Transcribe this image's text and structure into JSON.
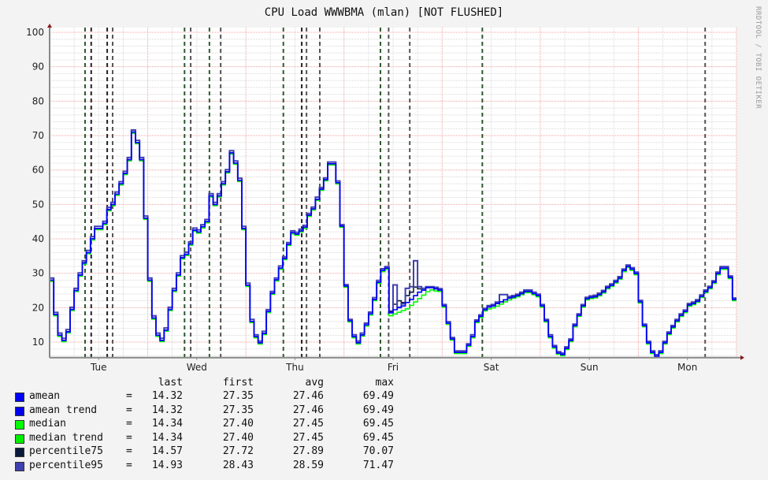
{
  "chart_data": {
    "type": "line",
    "title": "CPU Load WWWBMA (mlan) [NOT FLUSHED]",
    "watermark": "RRDTOOL / TOBI OETIKER",
    "x_ticks": [
      "Tue",
      "Wed",
      "Thu",
      "Fri",
      "Sat",
      "Sun",
      "Mon"
    ],
    "x_resolution": "hourly",
    "ylim": [
      5.5,
      100
    ],
    "y_ticks": [
      10,
      20,
      30,
      40,
      50,
      60,
      70,
      80,
      90,
      100
    ],
    "grid": true,
    "legend_placement": "bottom",
    "series": [
      {
        "name": "median",
        "color": "#00ff00",
        "values": [
          28,
          18,
          12,
          10.5,
          13,
          19.5,
          25,
          29.5,
          33,
          36,
          40,
          43,
          43,
          44.5,
          48.5,
          50,
          53,
          56,
          59,
          63,
          71,
          68,
          63,
          46,
          28,
          17,
          12,
          10.5,
          13.5,
          19.5,
          25,
          29.5,
          34.5,
          35.5,
          38.5,
          42.5,
          42,
          43.5,
          45,
          52.5,
          50,
          52.5,
          56,
          59.5,
          65,
          62,
          57,
          43,
          26.5,
          16,
          11.6,
          9.8,
          12.5,
          18.9,
          24.2,
          28.1,
          31.5,
          34.3,
          38.4,
          41.8,
          41.4,
          42.3,
          43.4,
          46.9,
          48.7,
          51.5,
          54.4,
          57.2,
          61.8,
          61.8,
          56.3,
          43.7,
          26.3,
          16.2,
          11.6,
          9.8,
          12.1,
          15,
          18.2,
          22.4,
          27.4,
          30.8,
          31.5,
          18,
          18.5,
          19,
          19.5,
          20,
          21,
          22,
          23,
          24,
          25,
          25.5,
          25.2,
          25,
          20.5,
          15.5,
          10.9,
          7,
          7,
          7,
          9.1,
          11.6,
          16,
          17.5,
          19.4,
          20,
          20.3,
          20.8,
          21.4,
          22,
          22.6,
          23.1,
          23.5,
          24.1,
          24.7,
          24.7,
          24.1,
          23.5,
          20.5,
          16.2,
          11.6,
          8.6,
          6.8,
          6.4,
          8.2,
          10.5,
          14.8,
          17.8,
          20.5,
          22.6,
          23,
          23.2,
          23.8,
          24.6,
          25.8,
          26.5,
          27.5,
          28.6,
          30.8,
          32,
          31.2,
          29.9,
          21.7,
          14.8,
          9.8,
          7,
          5.9,
          7,
          9.8,
          12.5,
          14.4,
          16.2,
          17.8,
          18.9,
          20.8,
          21.2,
          21.9,
          23.3,
          24.7,
          25.8,
          27.4,
          29.9,
          31.5,
          31.5,
          28.8,
          22.4
        ]
      },
      {
        "name": "percentile75",
        "color": "#0a1a3a",
        "values": [
          28,
          18,
          12,
          10.5,
          13,
          19.5,
          25,
          29.5,
          33,
          36,
          40,
          43,
          43,
          44.5,
          48.5,
          50,
          53,
          56,
          59,
          63,
          71,
          68,
          63,
          46,
          28,
          17,
          12,
          10.5,
          13.5,
          19.5,
          25,
          29.5,
          34.5,
          35.5,
          38.5,
          42.5,
          42,
          43.5,
          45,
          52.5,
          50,
          52.5,
          56,
          59.5,
          65,
          62,
          57,
          43,
          26.5,
          16,
          11.6,
          9.8,
          12.5,
          18.9,
          24.2,
          28.1,
          31.5,
          34.3,
          38.4,
          41.8,
          41.4,
          42.3,
          43.4,
          46.9,
          48.7,
          51.5,
          54.4,
          57.2,
          61.8,
          61.8,
          56.3,
          43.7,
          26.3,
          16.2,
          11.6,
          9.8,
          12.1,
          15,
          18.2,
          22.4,
          27.4,
          30.8,
          31.5,
          19,
          21,
          22,
          21.5,
          23.5,
          24.5,
          26,
          25.5,
          25.1,
          25.8,
          25.8,
          25.5,
          25.1,
          20.5,
          15.5,
          10.9,
          7,
          7,
          7,
          9.1,
          11.6,
          16,
          17.5,
          19.4,
          20.2,
          20.5,
          21.2,
          21.7,
          22.3,
          22.8,
          23.1,
          23.5,
          24.1,
          24.7,
          24.7,
          24.1,
          23.5,
          20.5,
          16.2,
          11.6,
          8.6,
          6.8,
          6.4,
          8.2,
          10.5,
          14.8,
          17.8,
          20.5,
          22.6,
          23,
          23.2,
          23.8,
          24.6,
          25.8,
          26.5,
          27.5,
          28.6,
          30.8,
          32,
          31.2,
          29.9,
          21.7,
          14.8,
          9.8,
          7,
          5.9,
          7,
          9.8,
          12.5,
          14.4,
          16.2,
          17.8,
          18.9,
          20.8,
          21.2,
          21.9,
          23.3,
          24.7,
          25.8,
          27.4,
          29.9,
          31.5,
          31.5,
          28.8,
          22.4
        ]
      },
      {
        "name": "percentile95",
        "color": "#4040b0",
        "values": [
          28.5,
          18.5,
          12.5,
          11,
          13.5,
          20,
          25.5,
          30,
          33.5,
          36.5,
          40.5,
          43.5,
          43.5,
          45,
          49,
          50.5,
          53.5,
          56.5,
          59.5,
          63.5,
          71.5,
          68.5,
          63.5,
          46.5,
          28.5,
          17.5,
          12.5,
          11,
          14,
          20,
          25.5,
          30,
          35,
          36,
          39,
          43,
          42.5,
          44,
          45.5,
          53,
          50.5,
          53,
          56.5,
          60,
          65.5,
          62.5,
          57.5,
          43.5,
          27,
          16.5,
          12,
          10.2,
          13,
          19.3,
          24.6,
          28.5,
          32,
          34.7,
          38.8,
          42.2,
          41.8,
          42.7,
          43.8,
          47.3,
          49.1,
          52,
          54.8,
          57.6,
          62.2,
          62.2,
          56.7,
          44,
          26.6,
          16.5,
          12,
          10.2,
          12.5,
          15.4,
          18.6,
          22.8,
          27.8,
          31.2,
          31.8,
          18.5,
          26.5,
          20,
          21,
          25.5,
          26,
          33.5,
          26,
          25.5,
          26,
          26,
          25.8,
          25.4,
          20.8,
          15.8,
          11.2,
          7.3,
          7.3,
          7.3,
          9.4,
          12,
          16.3,
          17.8,
          19.7,
          20.5,
          20.8,
          21.5,
          23.7,
          23.7,
          23.1,
          23.4,
          23.8,
          24.4,
          25,
          25,
          24.4,
          23.8,
          20.8,
          16.5,
          12,
          8.9,
          7.1,
          6.7,
          8.5,
          10.8,
          15.1,
          18.1,
          20.8,
          22.9,
          23.3,
          23.5,
          24.1,
          24.9,
          26.1,
          26.8,
          27.8,
          28.9,
          31.1,
          32.3,
          31.5,
          30.2,
          22,
          15.1,
          10.1,
          7.3,
          6.2,
          7.3,
          10.1,
          12.8,
          14.7,
          16.5,
          18.1,
          19.2,
          21.1,
          21.5,
          22.2,
          23.6,
          25,
          26.1,
          27.7,
          30.2,
          31.8,
          31.8,
          29.1,
          22.7
        ]
      },
      {
        "name": "amean",
        "color": "#0000ff",
        "values": [
          28,
          18,
          12,
          10.5,
          13,
          19.5,
          25,
          29.5,
          33,
          36,
          40,
          43,
          43,
          44.5,
          48.5,
          50,
          53,
          56,
          59,
          63,
          71,
          68,
          63,
          46,
          28,
          17,
          12,
          10.5,
          13.5,
          19.5,
          25,
          29.5,
          34.5,
          35.5,
          38.5,
          42.5,
          42,
          43.5,
          45,
          52.5,
          50,
          52.5,
          56,
          59.5,
          65,
          62,
          57,
          43,
          26.5,
          16,
          11.6,
          9.8,
          12.5,
          18.9,
          24.2,
          28.1,
          31.5,
          34.3,
          38.4,
          41.8,
          41.4,
          42.3,
          43.4,
          46.9,
          48.7,
          51.5,
          54.4,
          57.2,
          61.8,
          61.8,
          56.3,
          43.7,
          26.3,
          16.2,
          11.6,
          9.8,
          12.1,
          15,
          18.2,
          22.4,
          27.4,
          30.8,
          31.5,
          18.5,
          19.4,
          20,
          20.5,
          21.5,
          22.4,
          23.5,
          24.5,
          25.1,
          25.8,
          25.8,
          25.5,
          25.1,
          20.5,
          15.5,
          10.9,
          7,
          7,
          7,
          9.1,
          11.6,
          16,
          17.5,
          19.4,
          20.2,
          20.5,
          21.2,
          21.7,
          22.3,
          22.8,
          23.1,
          23.5,
          24.1,
          24.7,
          24.7,
          24.1,
          23.5,
          20.5,
          16.2,
          11.6,
          8.6,
          6.8,
          6.4,
          8.2,
          10.5,
          14.8,
          17.8,
          20.5,
          22.6,
          23,
          23.2,
          23.8,
          24.6,
          25.8,
          26.5,
          27.5,
          28.6,
          30.8,
          32,
          31.2,
          29.9,
          21.7,
          14.8,
          9.8,
          7,
          5.9,
          7,
          9.8,
          12.5,
          14.4,
          16.2,
          17.8,
          18.9,
          20.8,
          21.2,
          21.9,
          23.3,
          24.7,
          25.8,
          27.4,
          29.9,
          31.5,
          31.5,
          28.8,
          22.4
        ]
      }
    ],
    "vrules": [
      {
        "time": "Tue 08:40",
        "color": "#2e5a2e"
      },
      {
        "time": "Tue 10:10",
        "color": "#222222"
      },
      {
        "time": "Tue 14:05",
        "color": "#222222"
      },
      {
        "time": "Tue 15:25",
        "color": "#555555"
      },
      {
        "time": "Wed 09:00",
        "color": "#2e5a2e"
      },
      {
        "time": "Wed 10:30",
        "color": "#555555"
      },
      {
        "time": "Wed 15:05",
        "color": "#2e5a2e"
      },
      {
        "time": "Wed 17:50",
        "color": "#555555"
      },
      {
        "time": "Thu 09:10",
        "color": "#2e5a2e"
      },
      {
        "time": "Thu 13:40",
        "color": "#222222"
      },
      {
        "time": "Thu 14:50",
        "color": "#555555"
      },
      {
        "time": "Thu 18:05",
        "color": "#555555"
      },
      {
        "time": "Fri 08:55",
        "color": "#2e5a2e"
      },
      {
        "time": "Fri 10:55",
        "color": "#555555"
      },
      {
        "time": "Fri 16:05",
        "color": "#555555"
      },
      {
        "time": "Sat 09:50",
        "color": "#2e5a2e"
      },
      {
        "time": "Mon 16:20",
        "color": "#555555"
      }
    ]
  },
  "legend": {
    "headers": [
      "last",
      "first",
      "avg",
      "max"
    ],
    "eq": "=",
    "rows": [
      {
        "name": "amean",
        "color": "#0000ff",
        "last": "14.32",
        "first": "27.35",
        "avg": "27.46",
        "max": "69.49"
      },
      {
        "name": "amean trend",
        "color": "#0000ee",
        "last": "14.32",
        "first": "27.35",
        "avg": "27.46",
        "max": "69.49"
      },
      {
        "name": "median",
        "color": "#00ff00",
        "last": "14.34",
        "first": "27.40",
        "avg": "27.45",
        "max": "69.45"
      },
      {
        "name": "median trend",
        "color": "#00ee00",
        "last": "14.34",
        "first": "27.40",
        "avg": "27.45",
        "max": "69.45"
      },
      {
        "name": "percentile75",
        "color": "#0a1a3a",
        "last": "14.57",
        "first": "27.72",
        "avg": "27.89",
        "max": "70.07"
      },
      {
        "name": "percentile95",
        "color": "#4040b0",
        "last": "14.93",
        "first": "28.43",
        "avg": "28.59",
        "max": "71.47"
      }
    ]
  }
}
